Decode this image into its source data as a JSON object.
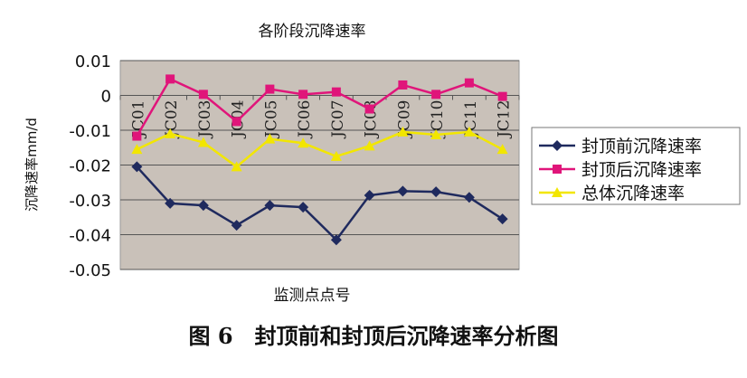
{
  "chart_data": {
    "type": "line",
    "title": "各阶段沉降速率",
    "xlabel": "监测点点号",
    "ylabel": "沉降速率mm/d",
    "categories": [
      "JC01",
      "JC02",
      "JC03",
      "JC04",
      "JC05",
      "JC06",
      "JC07",
      "JC08",
      "JC09",
      "JC10",
      "JC11",
      "JC12"
    ],
    "category_labels": [
      "JC01",
      "JC02",
      "JC03",
      "JC04",
      "JC05",
      "JC06",
      "JC07",
      "JC08",
      "JC09",
      "JC10",
      "JC11",
      "JC12"
    ],
    "ylim": [
      -0.05,
      0.01
    ],
    "yticks": [
      "0.01",
      "0",
      "-0.01",
      "-0.02",
      "-0.03",
      "-0.04",
      "-0.05"
    ],
    "grid": true,
    "legend_position": "right",
    "background": "#c9c1b9",
    "series": [
      {
        "name": "封顶前沉降速率",
        "color": "#1f2a5e",
        "marker": "diamond",
        "values": [
          -0.0205,
          -0.031,
          -0.0316,
          -0.0373,
          -0.0316,
          -0.0321,
          -0.0415,
          -0.0287,
          -0.0275,
          -0.0277,
          -0.0293,
          -0.0355
        ]
      },
      {
        "name": "封顶后沉降速率",
        "color": "#e0157a",
        "marker": "square",
        "values": [
          -0.0117,
          0.0047,
          0.0003,
          -0.0075,
          0.0018,
          0.0003,
          0.001,
          -0.0039,
          0.003,
          0.0003,
          0.0036,
          -0.0003
        ]
      },
      {
        "name": "总体沉降速率",
        "color": "#f2e600",
        "marker": "triangle",
        "values": [
          -0.0155,
          -0.011,
          -0.0135,
          -0.0205,
          -0.0125,
          -0.0137,
          -0.0175,
          -0.0145,
          -0.0105,
          -0.0113,
          -0.0105,
          -0.0155
        ]
      }
    ]
  },
  "caption": "图 6　封顶前和封顶后沉降速率分析图"
}
